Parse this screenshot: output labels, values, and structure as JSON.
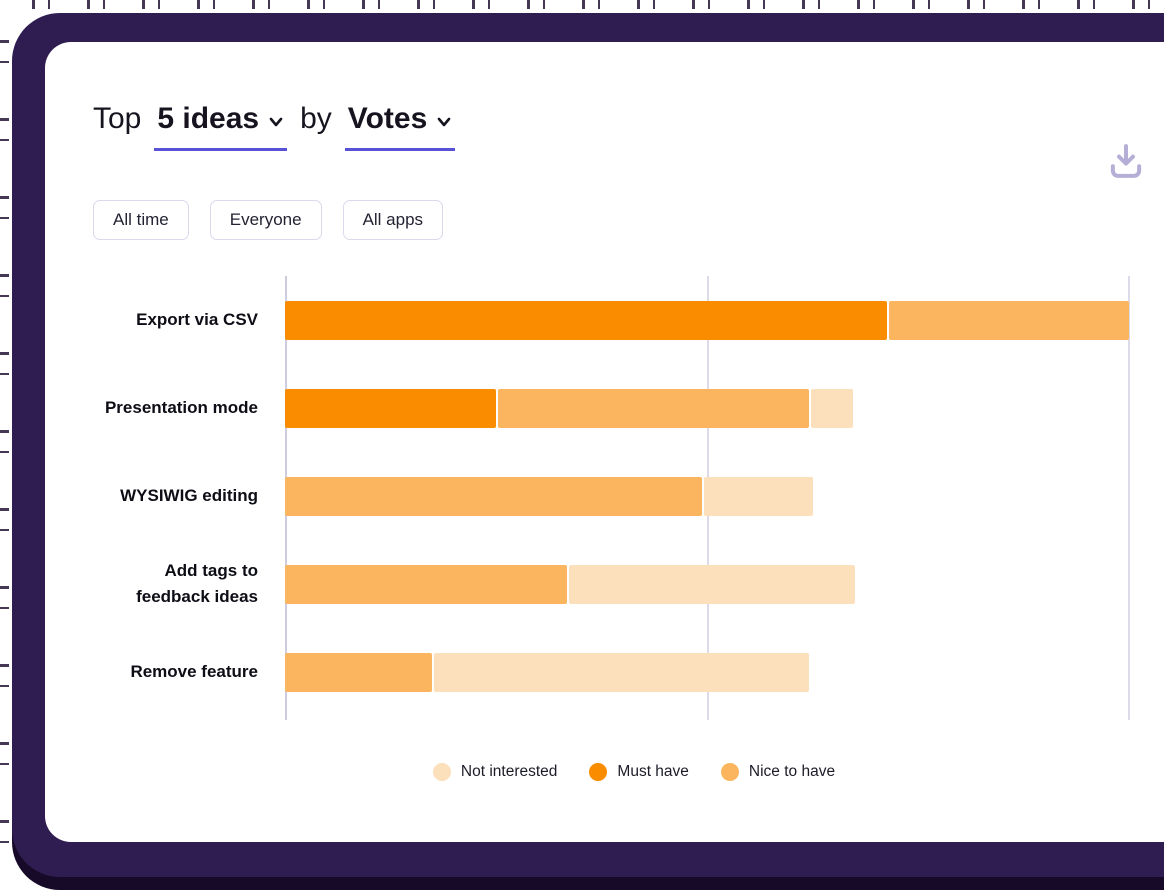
{
  "header": {
    "prefix": "Top",
    "count_dropdown": {
      "label": "5 ideas"
    },
    "connector": "by",
    "sort_dropdown": {
      "label": "Votes"
    },
    "icons": [
      {
        "name": "download"
      },
      {
        "name": "grid-view"
      }
    ]
  },
  "filters": [
    {
      "label": "All time"
    },
    {
      "label": "Everyone"
    },
    {
      "label": "All apps"
    }
  ],
  "chart_data": {
    "type": "bar",
    "orientation": "horizontal",
    "stacked": true,
    "title": "Top 5 ideas by Votes",
    "xlabel": "",
    "ylabel": "",
    "axis_note": "x-axis unlabeled; values estimated in relative units from gridlines",
    "xlim": [
      0,
      200
    ],
    "gridlines": [
      0,
      100,
      200
    ],
    "categories": [
      "Export via CSV",
      "Presentation mode",
      "WYSIWIG editing",
      "Add tags to feedback ideas",
      "Remove feature"
    ],
    "series": [
      {
        "name": "Must have",
        "color": "#FA8C00",
        "values": [
          143,
          50,
          0,
          0,
          0
        ]
      },
      {
        "name": "Nice to have",
        "color": "#FBB55E",
        "values": [
          57,
          74,
          99,
          67,
          35
        ]
      },
      {
        "name": "Not interested",
        "color": "#FCE0BC",
        "values": [
          0,
          10,
          26,
          68,
          89
        ]
      }
    ],
    "legend": {
      "position": "bottom",
      "entries": [
        {
          "label": "Not interested",
          "color": "#FCE0BC"
        },
        {
          "label": "Must have",
          "color": "#FA8C00"
        },
        {
          "label": "Nice to have",
          "color": "#FBB55E"
        }
      ]
    }
  },
  "colors": {
    "accent_underline": "#5952D9",
    "frame_purple": "#2F1C50",
    "frame_shadow": "#170928",
    "icon_lavender": "#B5AFD8",
    "axis_line": "#CFCCE0",
    "gridline": "#DDDBEA"
  }
}
